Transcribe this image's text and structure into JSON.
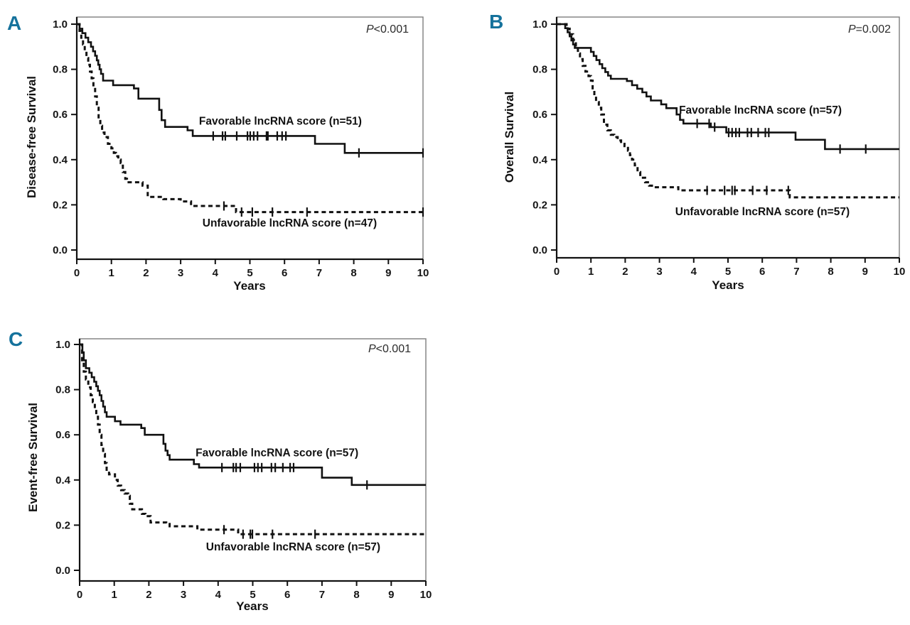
{
  "figure": {
    "background": "#ffffff",
    "panel_letter_color": "#15729c",
    "line_color": "#111111"
  },
  "chart_data": [
    {
      "panel": "A",
      "type": "line",
      "subtype": "kaplan-meier-step",
      "p_value": {
        "prefix": "P",
        "text": "<0.001"
      },
      "xlabel": "Years",
      "ylabel": "Disease-free Survival",
      "xlim": [
        0,
        10
      ],
      "ylim": [
        0,
        1
      ],
      "xticks": [
        0,
        1,
        2,
        3,
        4,
        5,
        6,
        7,
        8,
        9,
        10
      ],
      "yticks": [
        "0.0",
        "0.2",
        "0.4",
        "0.6",
        "0.8",
        "1.0"
      ],
      "grid": false,
      "series": [
        {
          "name": "Favorable lncRNA score (n=51)",
          "line": "solid",
          "label_at": [
            3.53,
            0.57
          ],
          "steps": [
            [
              0,
              1
            ],
            [
              0.08,
              0.98
            ],
            [
              0.16,
              0.96
            ],
            [
              0.25,
              0.94
            ],
            [
              0.33,
              0.92
            ],
            [
              0.41,
              0.9
            ],
            [
              0.47,
              0.88
            ],
            [
              0.53,
              0.86
            ],
            [
              0.58,
              0.84
            ],
            [
              0.62,
              0.82
            ],
            [
              0.66,
              0.8
            ],
            [
              0.7,
              0.78
            ],
            [
              0.76,
              0.75
            ],
            [
              1.05,
              0.73
            ],
            [
              1.65,
              0.715
            ],
            [
              1.78,
              0.67
            ],
            [
              2.38,
              0.62
            ],
            [
              2.45,
              0.575
            ],
            [
              2.55,
              0.545
            ],
            [
              3.2,
              0.53
            ],
            [
              3.35,
              0.505
            ],
            [
              6.88,
              0.47
            ],
            [
              7.74,
              0.43
            ]
          ],
          "censor_marks": [
            [
              3.94,
              0.505
            ],
            [
              4.21,
              0.505
            ],
            [
              4.29,
              0.505
            ],
            [
              4.62,
              0.505
            ],
            [
              4.93,
              0.505
            ],
            [
              5.01,
              0.505
            ],
            [
              5.11,
              0.505
            ],
            [
              5.22,
              0.505
            ],
            [
              5.48,
              0.505
            ],
            [
              5.52,
              0.505
            ],
            [
              5.79,
              0.505
            ],
            [
              5.93,
              0.505
            ],
            [
              6.04,
              0.505
            ],
            [
              8.15,
              0.43
            ],
            [
              10,
              0.43
            ]
          ]
        },
        {
          "name": "Unfavorable lncRNA score (n=47)",
          "line": "dashed",
          "label_at": [
            3.63,
            0.12
          ],
          "steps": [
            [
              0,
              1
            ],
            [
              0.08,
              0.97
            ],
            [
              0.13,
              0.94
            ],
            [
              0.18,
              0.91
            ],
            [
              0.23,
              0.88
            ],
            [
              0.28,
              0.85
            ],
            [
              0.33,
              0.82
            ],
            [
              0.38,
              0.79
            ],
            [
              0.43,
              0.76
            ],
            [
              0.48,
              0.72
            ],
            [
              0.53,
              0.68
            ],
            [
              0.58,
              0.63
            ],
            [
              0.63,
              0.58
            ],
            [
              0.68,
              0.55
            ],
            [
              0.73,
              0.52
            ],
            [
              0.8,
              0.5
            ],
            [
              0.9,
              0.47
            ],
            [
              1,
              0.45
            ],
            [
              1.07,
              0.43
            ],
            [
              1.13,
              0.415
            ],
            [
              1.2,
              0.4
            ],
            [
              1.27,
              0.385
            ],
            [
              1.33,
              0.345
            ],
            [
              1.4,
              0.315
            ],
            [
              1.45,
              0.3
            ],
            [
              1.9,
              0.285
            ],
            [
              2.05,
              0.235
            ],
            [
              2.5,
              0.225
            ],
            [
              3,
              0.215
            ],
            [
              3.3,
              0.195
            ],
            [
              4.6,
              0.168
            ]
          ],
          "censor_marks": [
            [
              4.25,
              0.195
            ],
            [
              4.76,
              0.168
            ],
            [
              5.07,
              0.168
            ],
            [
              5.65,
              0.168
            ],
            [
              6.65,
              0.168
            ],
            [
              10,
              0.168
            ]
          ]
        }
      ]
    },
    {
      "panel": "B",
      "type": "line",
      "subtype": "kaplan-meier-step",
      "p_value": {
        "prefix": "P",
        "text": "=0.002"
      },
      "xlabel": "Years",
      "ylabel": "Overall Survival",
      "xlim": [
        0,
        10
      ],
      "ylim": [
        0,
        1
      ],
      "xticks": [
        0,
        1,
        2,
        3,
        4,
        5,
        6,
        7,
        8,
        9,
        10
      ],
      "yticks": [
        "0.0",
        "0.2",
        "0.4",
        "0.6",
        "0.8",
        "1.0"
      ],
      "grid": false,
      "series": [
        {
          "name": "Favorable lncRNA score (n=57)",
          "line": "solid",
          "label_at": [
            3.57,
            0.62
          ],
          "steps": [
            [
              0,
              1
            ],
            [
              0.25,
              0.982
            ],
            [
              0.32,
              0.964
            ],
            [
              0.38,
              0.946
            ],
            [
              0.43,
              0.928
            ],
            [
              0.48,
              0.91
            ],
            [
              0.53,
              0.895
            ],
            [
              1,
              0.877
            ],
            [
              1.08,
              0.859
            ],
            [
              1.16,
              0.841
            ],
            [
              1.25,
              0.823
            ],
            [
              1.33,
              0.805
            ],
            [
              1.42,
              0.788
            ],
            [
              1.5,
              0.772
            ],
            [
              1.58,
              0.758
            ],
            [
              2.05,
              0.748
            ],
            [
              2.2,
              0.73
            ],
            [
              2.35,
              0.714
            ],
            [
              2.5,
              0.698
            ],
            [
              2.62,
              0.68
            ],
            [
              2.75,
              0.662
            ],
            [
              3.05,
              0.645
            ],
            [
              3.2,
              0.628
            ],
            [
              3.5,
              0.6
            ],
            [
              3.6,
              0.576
            ],
            [
              3.7,
              0.56
            ],
            [
              4.5,
              0.544
            ],
            [
              4.95,
              0.52
            ],
            [
              6.97,
              0.488
            ],
            [
              7.83,
              0.447
            ]
          ],
          "censor_marks": [
            [
              4.1,
              0.56
            ],
            [
              4.45,
              0.56
            ],
            [
              4.61,
              0.544
            ],
            [
              5.02,
              0.52
            ],
            [
              5.12,
              0.52
            ],
            [
              5.23,
              0.52
            ],
            [
              5.33,
              0.52
            ],
            [
              5.57,
              0.52
            ],
            [
              5.68,
              0.52
            ],
            [
              5.88,
              0.52
            ],
            [
              6.09,
              0.52
            ],
            [
              6.19,
              0.52
            ],
            [
              8.27,
              0.447
            ],
            [
              9.02,
              0.447
            ]
          ]
        },
        {
          "name": "Unfavorable lncRNA score (n=57)",
          "line": "dashed",
          "label_at": [
            3.46,
            0.17
          ],
          "steps": [
            [
              0,
              1
            ],
            [
              0.29,
              0.98
            ],
            [
              0.38,
              0.955
            ],
            [
              0.48,
              0.93
            ],
            [
              0.56,
              0.9
            ],
            [
              0.62,
              0.87
            ],
            [
              0.68,
              0.845
            ],
            [
              0.76,
              0.815
            ],
            [
              0.84,
              0.79
            ],
            [
              0.93,
              0.77
            ],
            [
              1,
              0.75
            ],
            [
              1.05,
              0.71
            ],
            [
              1.1,
              0.685
            ],
            [
              1.15,
              0.655
            ],
            [
              1.23,
              0.63
            ],
            [
              1.3,
              0.6
            ],
            [
              1.38,
              0.555
            ],
            [
              1.48,
              0.53
            ],
            [
              1.58,
              0.51
            ],
            [
              1.68,
              0.5
            ],
            [
              1.78,
              0.485
            ],
            [
              1.88,
              0.47
            ],
            [
              1.98,
              0.46
            ],
            [
              2.08,
              0.44
            ],
            [
              2.14,
              0.42
            ],
            [
              2.2,
              0.4
            ],
            [
              2.28,
              0.375
            ],
            [
              2.36,
              0.345
            ],
            [
              2.44,
              0.32
            ],
            [
              2.58,
              0.3
            ],
            [
              2.7,
              0.285
            ],
            [
              2.78,
              0.278
            ],
            [
              3.55,
              0.264
            ],
            [
              6.8,
              0.233
            ]
          ],
          "censor_marks": [
            [
              4.39,
              0.264
            ],
            [
              4.9,
              0.264
            ],
            [
              5.12,
              0.264
            ],
            [
              5.2,
              0.264
            ],
            [
              5.72,
              0.264
            ],
            [
              6.13,
              0.264
            ],
            [
              6.76,
              0.264
            ]
          ]
        }
      ]
    },
    {
      "panel": "C",
      "type": "line",
      "subtype": "kaplan-meier-step",
      "p_value": {
        "prefix": "P",
        "text": "<0.001"
      },
      "xlabel": "Years",
      "ylabel": "Event-free Survival",
      "xlim": [
        0,
        10
      ],
      "ylim": [
        0,
        1
      ],
      "xticks": [
        0,
        1,
        2,
        3,
        4,
        5,
        6,
        7,
        8,
        9,
        10
      ],
      "yticks": [
        "0.0",
        "0.2",
        "0.4",
        "0.6",
        "0.8",
        "1.0"
      ],
      "grid": false,
      "series": [
        {
          "name": "Favorable lncRNA score (n=57)",
          "line": "solid",
          "label_at": [
            3.35,
            0.52
          ],
          "steps": [
            [
              0,
              1
            ],
            [
              0.08,
              0.965
            ],
            [
              0.12,
              0.93
            ],
            [
              0.18,
              0.895
            ],
            [
              0.28,
              0.875
            ],
            [
              0.35,
              0.855
            ],
            [
              0.42,
              0.835
            ],
            [
              0.48,
              0.815
            ],
            [
              0.53,
              0.795
            ],
            [
              0.58,
              0.775
            ],
            [
              0.63,
              0.75
            ],
            [
              0.68,
              0.725
            ],
            [
              0.73,
              0.7
            ],
            [
              0.78,
              0.68
            ],
            [
              1.02,
              0.66
            ],
            [
              1.18,
              0.645
            ],
            [
              1.78,
              0.63
            ],
            [
              1.88,
              0.6
            ],
            [
              2.42,
              0.56
            ],
            [
              2.48,
              0.53
            ],
            [
              2.54,
              0.51
            ],
            [
              2.6,
              0.49
            ],
            [
              3.3,
              0.47
            ],
            [
              3.45,
              0.455
            ],
            [
              7,
              0.41
            ],
            [
              7.86,
              0.378
            ]
          ],
          "censor_marks": [
            [
              4.11,
              0.455
            ],
            [
              4.44,
              0.455
            ],
            [
              4.52,
              0.455
            ],
            [
              4.64,
              0.455
            ],
            [
              5.05,
              0.455
            ],
            [
              5.15,
              0.455
            ],
            [
              5.26,
              0.455
            ],
            [
              5.54,
              0.455
            ],
            [
              5.65,
              0.455
            ],
            [
              5.87,
              0.455
            ],
            [
              6.08,
              0.455
            ],
            [
              6.18,
              0.455
            ],
            [
              8.3,
              0.378
            ]
          ]
        },
        {
          "name": "Unfavorable lncRNA score (n=57)",
          "line": "dashed",
          "label_at": [
            3.65,
            0.104
          ],
          "steps": [
            [
              0,
              1
            ],
            [
              0.07,
              0.93
            ],
            [
              0.12,
              0.88
            ],
            [
              0.18,
              0.845
            ],
            [
              0.25,
              0.81
            ],
            [
              0.32,
              0.775
            ],
            [
              0.38,
              0.745
            ],
            [
              0.44,
              0.715
            ],
            [
              0.48,
              0.68
            ],
            [
              0.53,
              0.645
            ],
            [
              0.58,
              0.6
            ],
            [
              0.63,
              0.555
            ],
            [
              0.68,
              0.515
            ],
            [
              0.73,
              0.475
            ],
            [
              0.78,
              0.445
            ],
            [
              0.85,
              0.425
            ],
            [
              1.02,
              0.4
            ],
            [
              1.1,
              0.375
            ],
            [
              1.2,
              0.355
            ],
            [
              1.3,
              0.34
            ],
            [
              1.4,
              0.33
            ],
            [
              1.45,
              0.295
            ],
            [
              1.52,
              0.27
            ],
            [
              1.8,
              0.25
            ],
            [
              1.9,
              0.24
            ],
            [
              2.05,
              0.212
            ],
            [
              2.5,
              0.205
            ],
            [
              2.6,
              0.195
            ],
            [
              3.4,
              0.18
            ],
            [
              4.58,
              0.16
            ]
          ],
          "censor_marks": [
            [
              4.17,
              0.18
            ],
            [
              4.72,
              0.16
            ],
            [
              4.93,
              0.16
            ],
            [
              4.99,
              0.16
            ],
            [
              5.57,
              0.16
            ],
            [
              6.8,
              0.16
            ]
          ]
        }
      ]
    }
  ]
}
